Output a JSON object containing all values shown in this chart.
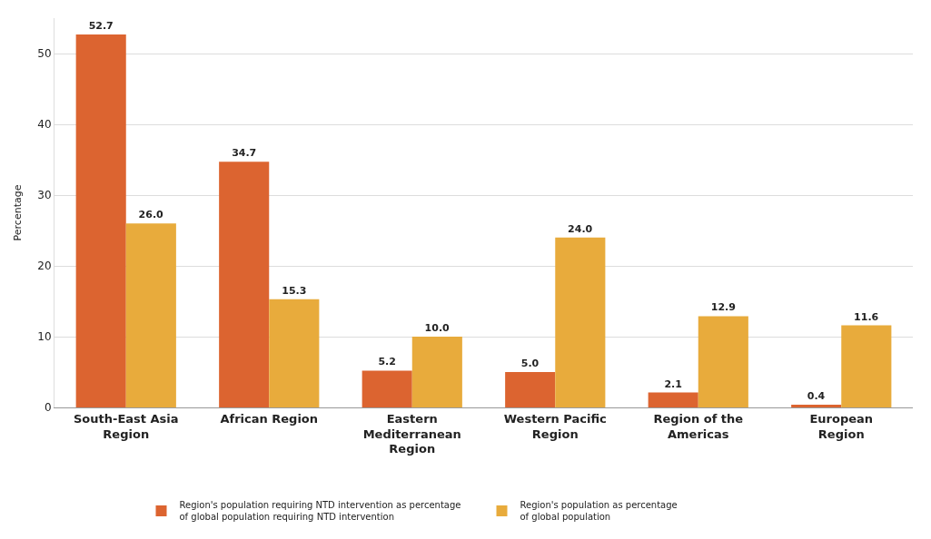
{
  "chart_data": {
    "type": "bar",
    "ylabel": "Percentage",
    "categories": [
      "South-East Asia\nRegion",
      "African Region",
      "Eastern\nMediterranean\nRegion",
      "Western Pacific\nRegion",
      "Region of the\nAmericas",
      "European\nRegion"
    ],
    "series": [
      {
        "name": "Region's population requiring NTD intervention as percentage\nof global population requiring NTD intervention",
        "color": "#dc6430",
        "values": [
          52.7,
          34.7,
          5.2,
          5.0,
          2.1,
          0.4
        ],
        "value_labels": [
          "52.7",
          "34.7",
          "5.2",
          "5.0",
          "2.1",
          "0.4"
        ]
      },
      {
        "name": "Region's population as percentage\nof global population",
        "color": "#e8ab3c",
        "values": [
          26.0,
          15.3,
          10.0,
          24.0,
          12.9,
          11.6
        ],
        "value_labels": [
          "26.0",
          "15.3",
          "10.0",
          "24.0",
          "12.9",
          "11.6"
        ]
      }
    ],
    "ylim": [
      0,
      55
    ],
    "yticks": [
      0,
      10,
      20,
      30,
      40,
      50
    ],
    "grid": "y",
    "legend": "bottom"
  }
}
